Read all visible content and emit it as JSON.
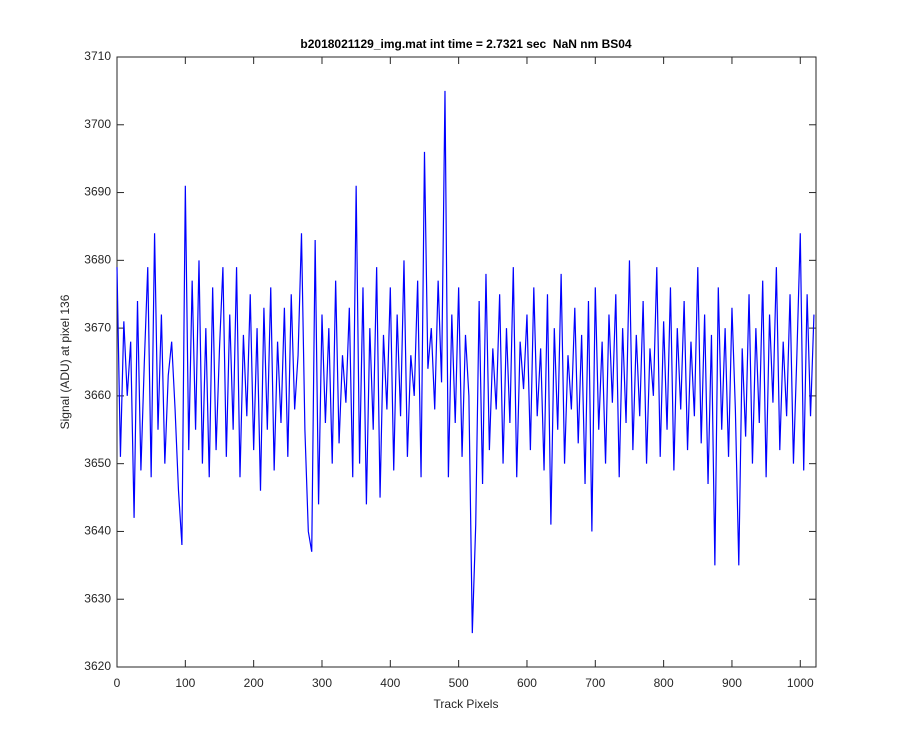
{
  "chart_data": {
    "type": "line",
    "title": "b2018021129_img.mat int time = 2.7321 sec  NaN nm BS04",
    "x_label": "Track Pixels",
    "y_label": "Signal (ADU) at pixel 136",
    "xlim": [
      0,
      1023
    ],
    "ylim": [
      3620,
      3710
    ],
    "xticks": [
      0,
      100,
      200,
      300,
      400,
      500,
      600,
      700,
      800,
      900,
      1000
    ],
    "yticks": [
      3620,
      3630,
      3640,
      3650,
      3660,
      3670,
      3680,
      3690,
      3700,
      3710
    ],
    "grid": false,
    "x": [
      0,
      5,
      10,
      15,
      20,
      25,
      30,
      35,
      40,
      45,
      50,
      55,
      60,
      65,
      70,
      75,
      80,
      85,
      90,
      95,
      100,
      105,
      110,
      115,
      120,
      125,
      130,
      135,
      140,
      145,
      150,
      155,
      160,
      165,
      170,
      175,
      180,
      185,
      190,
      195,
      200,
      205,
      210,
      215,
      220,
      225,
      230,
      235,
      240,
      245,
      250,
      255,
      260,
      265,
      270,
      275,
      280,
      285,
      290,
      295,
      300,
      305,
      310,
      315,
      320,
      325,
      330,
      335,
      340,
      345,
      350,
      355,
      360,
      365,
      370,
      375,
      380,
      385,
      390,
      395,
      400,
      405,
      410,
      415,
      420,
      425,
      430,
      435,
      440,
      445,
      450,
      455,
      460,
      465,
      470,
      475,
      480,
      485,
      490,
      495,
      500,
      505,
      510,
      515,
      520,
      525,
      530,
      535,
      540,
      545,
      550,
      555,
      560,
      565,
      570,
      575,
      580,
      585,
      590,
      595,
      600,
      605,
      610,
      615,
      620,
      625,
      630,
      635,
      640,
      645,
      650,
      655,
      660,
      665,
      670,
      675,
      680,
      685,
      690,
      695,
      700,
      705,
      710,
      715,
      720,
      725,
      730,
      735,
      740,
      745,
      750,
      755,
      760,
      765,
      770,
      775,
      780,
      785,
      790,
      795,
      800,
      805,
      810,
      815,
      820,
      825,
      830,
      835,
      840,
      845,
      850,
      855,
      860,
      865,
      870,
      875,
      880,
      885,
      890,
      895,
      900,
      905,
      910,
      915,
      920,
      925,
      930,
      935,
      940,
      945,
      950,
      955,
      960,
      965,
      970,
      975,
      980,
      985,
      990,
      995,
      1000,
      1005,
      1010,
      1015,
      1020
    ],
    "series": [
      {
        "color": "#0000ff",
        "values": [
          3679,
          3651,
          3671,
          3660,
          3668,
          3642,
          3674,
          3649,
          3665,
          3679,
          3648,
          3684,
          3655,
          3672,
          3650,
          3663,
          3668,
          3658,
          3646,
          3638,
          3691,
          3652,
          3677,
          3655,
          3680,
          3650,
          3670,
          3648,
          3676,
          3652,
          3667,
          3679,
          3651,
          3672,
          3655,
          3679,
          3648,
          3669,
          3657,
          3675,
          3652,
          3670,
          3646,
          3673,
          3655,
          3676,
          3649,
          3668,
          3656,
          3673,
          3651,
          3675,
          3658,
          3666,
          3684,
          3655,
          3640,
          3637,
          3683,
          3644,
          3672,
          3656,
          3670,
          3650,
          3677,
          3653,
          3666,
          3659,
          3673,
          3648,
          3691,
          3650,
          3676,
          3644,
          3670,
          3655,
          3679,
          3645,
          3669,
          3658,
          3676,
          3649,
          3672,
          3657,
          3680,
          3651,
          3666,
          3660,
          3677,
          3648,
          3696,
          3664,
          3670,
          3658,
          3677,
          3662,
          3705,
          3648,
          3672,
          3656,
          3676,
          3651,
          3669,
          3660,
          3625,
          3641,
          3674,
          3647,
          3678,
          3652,
          3667,
          3658,
          3675,
          3650,
          3670,
          3656,
          3679,
          3648,
          3668,
          3661,
          3672,
          3652,
          3676,
          3657,
          3667,
          3649,
          3675,
          3641,
          3670,
          3655,
          3678,
          3650,
          3666,
          3658,
          3673,
          3653,
          3669,
          3647,
          3674,
          3640,
          3676,
          3655,
          3668,
          3650,
          3672,
          3659,
          3675,
          3648,
          3670,
          3656,
          3680,
          3652,
          3669,
          3657,
          3674,
          3650,
          3667,
          3660,
          3679,
          3651,
          3671,
          3655,
          3676,
          3649,
          3670,
          3658,
          3674,
          3652,
          3668,
          3657,
          3679,
          3653,
          3672,
          3647,
          3669,
          3635,
          3676,
          3655,
          3670,
          3651,
          3673,
          3658,
          3635,
          3667,
          3654,
          3675,
          3650,
          3670,
          3656,
          3677,
          3648,
          3672,
          3659,
          3679,
          3652,
          3668,
          3657,
          3675,
          3650,
          3666,
          3684,
          3649,
          3675,
          3657,
          3672
        ]
      }
    ]
  }
}
